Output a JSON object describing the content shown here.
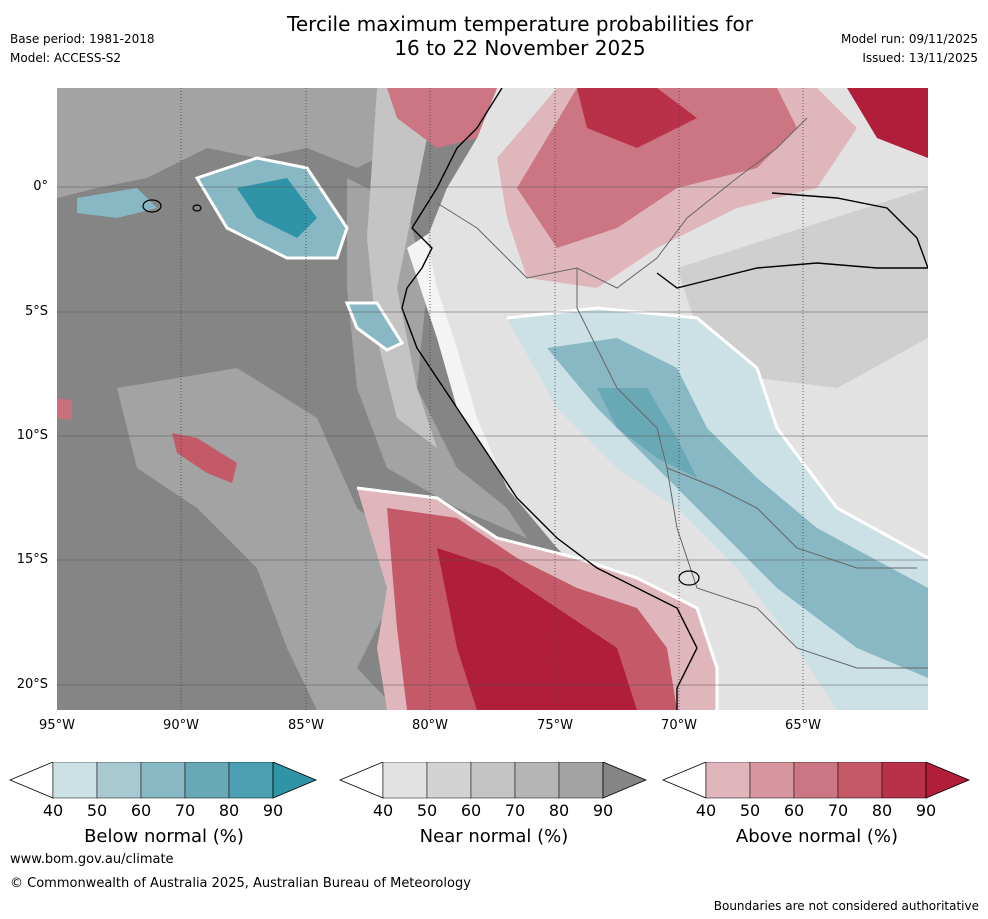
{
  "header": {
    "title_line1": "Tercile maximum temperature probabilities for",
    "title_line2": "16 to 22 November 2025",
    "base_period": "Base period: 1981-2018",
    "model": "Model: ACCESS-S2",
    "model_run": "Model run: 09/11/2025",
    "issued": "Issued: 13/11/2025"
  },
  "map": {
    "lat_labels": [
      "0°",
      "5°S",
      "10°S",
      "15°S",
      "20°S"
    ],
    "lon_labels": [
      "95°W",
      "90°W",
      "85°W",
      "80°W",
      "75°W",
      "70°W",
      "65°W"
    ],
    "colors": {
      "ocean_gray": "#858585",
      "gray_mid": "#a3a3a3",
      "gray_light": "#c4c4c4",
      "gray_pale": "#e2e2e2",
      "blue_light": "#cbe1e6",
      "blue_mid": "#88b8c4",
      "blue_dark": "#2f94a6",
      "red_light": "#e0b6bd",
      "red_mid": "#c8707c",
      "red_dark": "#b01e3a"
    }
  },
  "legend": {
    "tick_values": [
      "40",
      "50",
      "60",
      "70",
      "80",
      "90"
    ],
    "below": {
      "label": "Below normal (%)",
      "colors": [
        "#cbe1e6",
        "#a7c9cf",
        "#88b8c4",
        "#69a9b5",
        "#4aa0b0",
        "#2f94a6"
      ]
    },
    "near": {
      "label": "Near normal (%)",
      "colors": [
        "#e2e2e2",
        "#d3d3d3",
        "#c4c4c4",
        "#b5b5b5",
        "#a3a3a3",
        "#858585"
      ]
    },
    "above": {
      "label": "Above normal (%)",
      "colors": [
        "#e0b6bd",
        "#d6959f",
        "#cc7683",
        "#c45a68",
        "#b83148",
        "#b01e3a"
      ]
    }
  },
  "footer": {
    "url": "www.bom.gov.au/climate",
    "copyright": "© Commonwealth of Australia 2025, Australian Bureau of Meteorology",
    "disclaimer": "Boundaries are not considered authoritative"
  }
}
